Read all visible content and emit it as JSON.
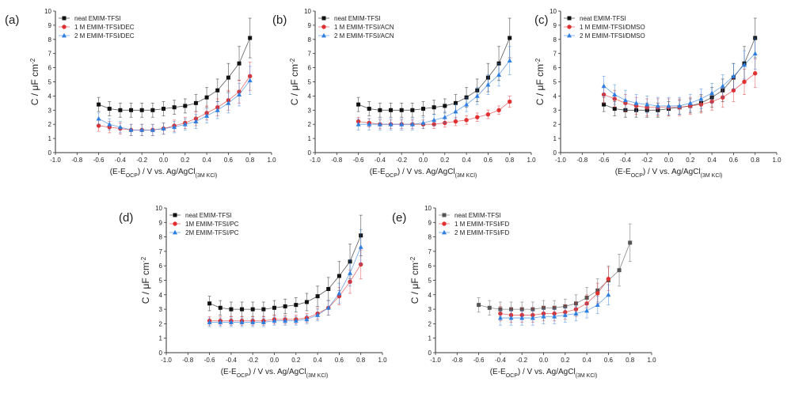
{
  "colors": {
    "black": "#111111",
    "red": "#e03030",
    "blue": "#2f7fe0",
    "grey": "#555555"
  },
  "chart_data": [
    {
      "type": "scatter",
      "panel_label": "(a)",
      "ylabel_main": "C / μF cm",
      "ylabel_sup": "-2",
      "xlabel_main": "(E-E",
      "xlabel_sub1": "OCP",
      "xlabel_mid": ") / V vs. Ag/AgCl",
      "xlabel_sub2": "(3M KCl)",
      "xlim": [
        -1.0,
        1.0
      ],
      "ylim": [
        0,
        10
      ],
      "xticks": [
        "-1.0",
        "-0.8",
        "-0.6",
        "-0.4",
        "-0.2",
        "0.0",
        "0.2",
        "0.4",
        "0.6",
        "0.8",
        "1.0"
      ],
      "yticks": [
        "0",
        "1",
        "2",
        "3",
        "4",
        "5",
        "6",
        "7",
        "8",
        "9",
        "10"
      ],
      "legend_position": "top-left",
      "series": [
        {
          "name": "neat EMIM-TFSI",
          "color": "black",
          "marker": "square",
          "x": [
            -0.6,
            -0.5,
            -0.4,
            -0.3,
            -0.2,
            -0.1,
            0.0,
            0.1,
            0.2,
            0.3,
            0.4,
            0.5,
            0.6,
            0.7,
            0.8
          ],
          "y": [
            3.4,
            3.1,
            3.0,
            3.0,
            3.0,
            3.0,
            3.1,
            3.2,
            3.3,
            3.5,
            3.9,
            4.4,
            5.3,
            6.3,
            8.1
          ],
          "err": [
            0.5,
            0.5,
            0.5,
            0.5,
            0.5,
            0.5,
            0.5,
            0.5,
            0.5,
            0.6,
            0.7,
            0.8,
            1.0,
            1.2,
            1.4
          ]
        },
        {
          "name": "1 M EMIM-TFSI/DEC",
          "color": "red",
          "marker": "circle",
          "x": [
            -0.6,
            -0.5,
            -0.4,
            -0.3,
            -0.2,
            -0.1,
            0.0,
            0.1,
            0.2,
            0.3,
            0.4,
            0.5,
            0.6,
            0.7,
            0.8
          ],
          "y": [
            1.9,
            1.8,
            1.7,
            1.6,
            1.6,
            1.6,
            1.7,
            1.9,
            2.1,
            2.4,
            2.8,
            3.2,
            3.7,
            4.3,
            5.4
          ],
          "err": [
            0.4,
            0.4,
            0.4,
            0.4,
            0.4,
            0.4,
            0.4,
            0.4,
            0.4,
            0.5,
            0.5,
            0.6,
            0.7,
            0.8,
            1.0
          ]
        },
        {
          "name": "2 M EMIM-TFSI/DEC",
          "color": "blue",
          "marker": "triangle",
          "x": [
            -0.6,
            -0.5,
            -0.4,
            -0.3,
            -0.2,
            -0.1,
            0.0,
            0.1,
            0.2,
            0.3,
            0.4,
            0.5,
            0.6,
            0.7,
            0.8
          ],
          "y": [
            2.4,
            2.0,
            1.8,
            1.6,
            1.6,
            1.6,
            1.7,
            1.8,
            2.0,
            2.2,
            2.6,
            3.0,
            3.5,
            4.1,
            5.1
          ],
          "err": [
            0.4,
            0.4,
            0.4,
            0.4,
            0.4,
            0.4,
            0.4,
            0.4,
            0.4,
            0.5,
            0.5,
            0.6,
            0.7,
            0.8,
            1.0
          ]
        }
      ]
    },
    {
      "type": "scatter",
      "panel_label": "(b)",
      "ylabel_main": "C / μF cm",
      "ylabel_sup": "-2",
      "xlabel_main": "(E-E",
      "xlabel_sub1": "OCP",
      "xlabel_mid": ") / V vs. Ag/AgCl",
      "xlabel_sub2": "(3M KCl)",
      "xlim": [
        -1.0,
        1.0
      ],
      "ylim": [
        0,
        10
      ],
      "xticks": [
        "-1.0",
        "-0.8",
        "-0.6",
        "-0.4",
        "-0.2",
        "0.0",
        "0.2",
        "0.4",
        "0.6",
        "0.8",
        "1.0"
      ],
      "yticks": [
        "0",
        "1",
        "2",
        "3",
        "4",
        "5",
        "6",
        "7",
        "8",
        "9",
        "10"
      ],
      "legend_position": "top-left",
      "series": [
        {
          "name": "neat EMIM-TFSI",
          "color": "black",
          "marker": "square",
          "x": [
            -0.6,
            -0.5,
            -0.4,
            -0.3,
            -0.2,
            -0.1,
            0.0,
            0.1,
            0.2,
            0.3,
            0.4,
            0.5,
            0.6,
            0.7,
            0.8
          ],
          "y": [
            3.4,
            3.1,
            3.0,
            3.0,
            3.0,
            3.0,
            3.1,
            3.2,
            3.3,
            3.5,
            3.9,
            4.4,
            5.3,
            6.3,
            8.1
          ],
          "err": [
            0.5,
            0.5,
            0.5,
            0.5,
            0.5,
            0.5,
            0.5,
            0.5,
            0.5,
            0.6,
            0.7,
            0.8,
            1.0,
            1.2,
            1.4
          ]
        },
        {
          "name": "1 M EMIM-TFSI/ACN",
          "color": "red",
          "marker": "circle",
          "x": [
            -0.6,
            -0.5,
            -0.4,
            -0.3,
            -0.2,
            -0.1,
            0.0,
            0.1,
            0.2,
            0.3,
            0.4,
            0.5,
            0.6,
            0.7,
            0.8
          ],
          "y": [
            2.2,
            2.1,
            2.0,
            2.0,
            2.0,
            2.0,
            2.0,
            2.0,
            2.1,
            2.2,
            2.3,
            2.5,
            2.7,
            3.0,
            3.6
          ],
          "err": [
            0.3,
            0.3,
            0.3,
            0.3,
            0.3,
            0.3,
            0.3,
            0.3,
            0.3,
            0.3,
            0.3,
            0.3,
            0.3,
            0.3,
            0.4
          ]
        },
        {
          "name": "2 M EMIM-TFSI/ACN",
          "color": "blue",
          "marker": "triangle",
          "x": [
            -0.6,
            -0.5,
            -0.4,
            -0.3,
            -0.2,
            -0.1,
            0.0,
            0.1,
            0.2,
            0.3,
            0.4,
            0.5,
            0.6,
            0.7,
            0.8
          ],
          "y": [
            2.0,
            2.0,
            2.0,
            2.0,
            2.0,
            2.0,
            2.1,
            2.3,
            2.5,
            2.9,
            3.4,
            4.0,
            4.8,
            5.5,
            6.5
          ],
          "err": [
            0.4,
            0.4,
            0.4,
            0.4,
            0.4,
            0.4,
            0.4,
            0.4,
            0.4,
            0.5,
            0.5,
            0.6,
            0.7,
            0.8,
            1.0
          ]
        }
      ]
    },
    {
      "type": "scatter",
      "panel_label": "(c)",
      "ylabel_main": "C / μF cm",
      "ylabel_sup": "-2",
      "xlabel_main": "(E-E",
      "xlabel_sub1": "OCP",
      "xlabel_mid": ") / V vs. Ag/AgCl",
      "xlabel_sub2": "(3M KCl)",
      "xlim": [
        -1.0,
        1.0
      ],
      "ylim": [
        0,
        10
      ],
      "xticks": [
        "-1.0",
        "-0.8",
        "-0.6",
        "-0.4",
        "-0.2",
        "0.0",
        "0.2",
        "0.4",
        "0.6",
        "0.8",
        "1.0"
      ],
      "yticks": [
        "0",
        "1",
        "2",
        "3",
        "4",
        "5",
        "6",
        "7",
        "8",
        "9",
        "10"
      ],
      "legend_position": "top-left",
      "series": [
        {
          "name": "neat EMIM-TFSI",
          "color": "black",
          "marker": "square",
          "x": [
            -0.6,
            -0.5,
            -0.4,
            -0.3,
            -0.2,
            -0.1,
            0.0,
            0.1,
            0.2,
            0.3,
            0.4,
            0.5,
            0.6,
            0.7,
            0.8
          ],
          "y": [
            3.4,
            3.1,
            3.0,
            3.0,
            3.0,
            3.0,
            3.1,
            3.2,
            3.3,
            3.5,
            3.9,
            4.4,
            5.3,
            6.3,
            8.1
          ],
          "err": [
            0.5,
            0.5,
            0.5,
            0.5,
            0.5,
            0.5,
            0.5,
            0.5,
            0.5,
            0.6,
            0.7,
            0.8,
            1.0,
            1.2,
            1.4
          ]
        },
        {
          "name": "1 M EMIM-TFSI/DMSO",
          "color": "red",
          "marker": "circle",
          "x": [
            -0.6,
            -0.5,
            -0.4,
            -0.3,
            -0.2,
            -0.1,
            0.0,
            0.1,
            0.2,
            0.3,
            0.4,
            0.5,
            0.6,
            0.7,
            0.8
          ],
          "y": [
            4.1,
            3.8,
            3.5,
            3.3,
            3.2,
            3.2,
            3.2,
            3.2,
            3.3,
            3.4,
            3.6,
            3.9,
            4.4,
            5.0,
            5.6
          ],
          "err": [
            0.6,
            0.6,
            0.6,
            0.6,
            0.6,
            0.6,
            0.6,
            0.6,
            0.6,
            0.6,
            0.6,
            0.7,
            0.8,
            0.9,
            1.0
          ]
        },
        {
          "name": "2 M EMIM-TFSI/DMSO",
          "color": "blue",
          "marker": "triangle",
          "x": [
            -0.6,
            -0.5,
            -0.4,
            -0.3,
            -0.2,
            -0.1,
            0.0,
            0.1,
            0.2,
            0.3,
            0.4,
            0.5,
            0.6,
            0.7,
            0.8
          ],
          "y": [
            4.7,
            4.1,
            3.7,
            3.5,
            3.4,
            3.3,
            3.3,
            3.3,
            3.5,
            3.8,
            4.2,
            4.7,
            5.4,
            6.2,
            7.0
          ],
          "err": [
            0.7,
            0.7,
            0.7,
            0.6,
            0.6,
            0.6,
            0.6,
            0.6,
            0.6,
            0.7,
            0.7,
            0.8,
            0.9,
            1.0,
            1.1
          ]
        }
      ]
    },
    {
      "type": "scatter",
      "panel_label": "(d)",
      "ylabel_main": "C / μF cm",
      "ylabel_sup": "-2",
      "xlabel_main": "(E-E",
      "xlabel_sub1": "OCP",
      "xlabel_mid": ") / V vs. Ag/AgCl",
      "xlabel_sub2": "(3M KCl)",
      "xlim": [
        -1.0,
        1.0
      ],
      "ylim": [
        0,
        10
      ],
      "xticks": [
        "-1.0",
        "-0.8",
        "-0.6",
        "-0.4",
        "-0.2",
        "0.0",
        "0.2",
        "0.4",
        "0.6",
        "0.8",
        "1.0"
      ],
      "yticks": [
        "0",
        "1",
        "2",
        "3",
        "4",
        "5",
        "6",
        "7",
        "8",
        "9",
        "10"
      ],
      "legend_position": "top-left",
      "series": [
        {
          "name": "neat EMIM-TFSI",
          "color": "black",
          "marker": "square",
          "x": [
            -0.6,
            -0.5,
            -0.4,
            -0.3,
            -0.2,
            -0.1,
            0.0,
            0.1,
            0.2,
            0.3,
            0.4,
            0.5,
            0.6,
            0.7,
            0.8
          ],
          "y": [
            3.4,
            3.1,
            3.0,
            3.0,
            3.0,
            3.0,
            3.1,
            3.2,
            3.3,
            3.5,
            3.9,
            4.4,
            5.3,
            6.3,
            8.1
          ],
          "err": [
            0.5,
            0.5,
            0.5,
            0.5,
            0.5,
            0.5,
            0.5,
            0.5,
            0.5,
            0.6,
            0.7,
            0.8,
            1.0,
            1.2,
            1.4
          ]
        },
        {
          "name": "1M EMIM-TFSI/PC",
          "color": "red",
          "marker": "circle",
          "x": [
            -0.6,
            -0.5,
            -0.4,
            -0.3,
            -0.2,
            -0.1,
            0.0,
            0.1,
            0.2,
            0.3,
            0.4,
            0.5,
            0.6,
            0.7,
            0.8
          ],
          "y": [
            2.2,
            2.2,
            2.2,
            2.2,
            2.2,
            2.2,
            2.3,
            2.3,
            2.3,
            2.4,
            2.7,
            3.1,
            3.9,
            4.9,
            6.1
          ],
          "err": [
            0.3,
            0.3,
            0.3,
            0.3,
            0.3,
            0.3,
            0.3,
            0.3,
            0.3,
            0.3,
            0.4,
            0.5,
            0.6,
            0.8,
            1.0
          ]
        },
        {
          "name": "2M EMIM-TFSI/PC",
          "color": "blue",
          "marker": "triangle",
          "x": [
            -0.6,
            -0.5,
            -0.4,
            -0.3,
            -0.2,
            -0.1,
            0.0,
            0.1,
            0.2,
            0.3,
            0.4,
            0.5,
            0.6,
            0.7,
            0.8
          ],
          "y": [
            2.1,
            2.1,
            2.1,
            2.1,
            2.1,
            2.1,
            2.2,
            2.2,
            2.2,
            2.3,
            2.6,
            3.1,
            4.1,
            5.5,
            7.3
          ],
          "err": [
            0.3,
            0.3,
            0.3,
            0.3,
            0.3,
            0.3,
            0.3,
            0.3,
            0.3,
            0.3,
            0.4,
            0.5,
            0.7,
            0.9,
            1.2
          ]
        }
      ]
    },
    {
      "type": "scatter",
      "panel_label": "(e)",
      "ylabel_main": "C / μF cm",
      "ylabel_sup": "-2",
      "xlabel_main": "(E-E",
      "xlabel_sub1": "OCP",
      "xlabel_mid": ") / V vs. Ag/AgCl",
      "xlabel_sub2": "(3M KCl)",
      "xlim": [
        -1.0,
        1.0
      ],
      "ylim": [
        0,
        10
      ],
      "xticks": [
        "-1.0",
        "-0.8",
        "-0.6",
        "-0.4",
        "-0.2",
        "0.0",
        "0.2",
        "0.4",
        "0.6",
        "0.8",
        "1.0"
      ],
      "yticks": [
        "0",
        "1",
        "2",
        "3",
        "4",
        "5",
        "6",
        "7",
        "8",
        "9",
        "10"
      ],
      "legend_position": "top-left",
      "series": [
        {
          "name": "neat EMIM-TFSI",
          "color": "grey",
          "marker": "square",
          "x": [
            -0.6,
            -0.5,
            -0.4,
            -0.3,
            -0.2,
            -0.1,
            0.0,
            0.1,
            0.2,
            0.3,
            0.4,
            0.5,
            0.6,
            0.7,
            0.8
          ],
          "y": [
            3.3,
            3.1,
            3.0,
            3.0,
            3.0,
            3.0,
            3.1,
            3.1,
            3.2,
            3.4,
            3.8,
            4.3,
            5.0,
            5.7,
            7.6
          ],
          "err": [
            0.5,
            0.5,
            0.5,
            0.5,
            0.5,
            0.5,
            0.5,
            0.5,
            0.5,
            0.6,
            0.7,
            0.8,
            1.0,
            1.1,
            1.3
          ]
        },
        {
          "name": "1 M EMIM-TFSI/FD",
          "color": "red",
          "marker": "circle",
          "x": [
            -0.4,
            -0.3,
            -0.2,
            -0.1,
            0.0,
            0.1,
            0.2,
            0.3,
            0.4,
            0.5,
            0.6
          ],
          "y": [
            2.7,
            2.6,
            2.6,
            2.6,
            2.7,
            2.7,
            2.8,
            3.0,
            3.4,
            4.1,
            5.1
          ],
          "err": [
            0.5,
            0.5,
            0.5,
            0.5,
            0.5,
            0.5,
            0.5,
            0.5,
            0.6,
            0.7,
            0.8
          ]
        },
        {
          "name": "2 M EMIM-TFSI/FD",
          "color": "blue",
          "marker": "triangle",
          "x": [
            -0.4,
            -0.3,
            -0.2,
            -0.1,
            0.0,
            0.1,
            0.2,
            0.3,
            0.4,
            0.5,
            0.6
          ],
          "y": [
            2.4,
            2.4,
            2.4,
            2.4,
            2.5,
            2.5,
            2.6,
            2.7,
            2.9,
            3.3,
            4.0
          ],
          "err": [
            0.5,
            0.5,
            0.5,
            0.5,
            0.5,
            0.5,
            0.5,
            0.5,
            0.5,
            0.6,
            0.7
          ]
        }
      ]
    }
  ]
}
